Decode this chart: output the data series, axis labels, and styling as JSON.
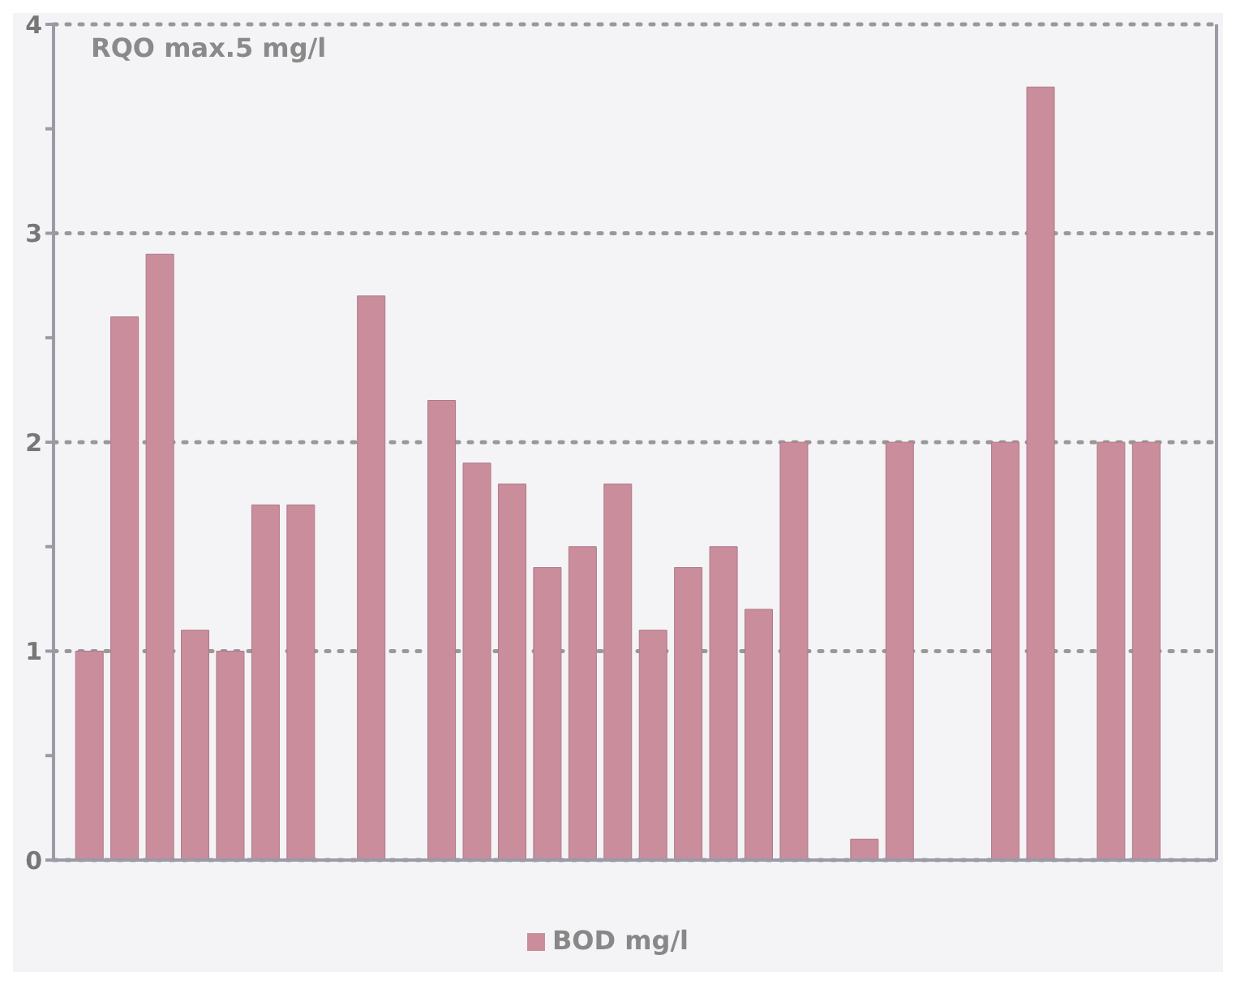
{
  "chart_data": {
    "type": "bar",
    "categories": [
      null,
      null,
      null,
      null,
      null,
      null,
      null,
      null,
      null,
      null,
      null,
      null,
      null,
      null,
      null,
      null,
      null,
      null,
      null,
      null,
      null,
      null,
      null,
      null,
      null,
      null,
      null,
      null,
      null,
      null,
      null,
      null
    ],
    "series": [
      {
        "name": "BOD mg/l",
        "color": "#c98d9c",
        "values": [
          1.0,
          2.6,
          2.9,
          1.1,
          1.0,
          1.7,
          1.7,
          null,
          2.7,
          null,
          2.2,
          1.9,
          1.8,
          1.4,
          1.5,
          1.8,
          1.1,
          1.4,
          1.5,
          1.2,
          2.0,
          null,
          0.1,
          2.0,
          null,
          null,
          2.0,
          3.7,
          null,
          2.0,
          2.0,
          null
        ]
      }
    ],
    "ylim": [
      0,
      4
    ],
    "yticks": [
      0,
      {
        "value": 0.5,
        "label": null
      },
      1,
      {
        "value": 1.5,
        "label": null
      },
      2,
      {
        "value": 2.5,
        "label": null
      },
      3,
      {
        "value": 3.5,
        "label": null
      },
      4
    ],
    "grid": "y",
    "legend": "bottom",
    "annotations": [
      "RQO max.5 mg/l"
    ]
  }
}
